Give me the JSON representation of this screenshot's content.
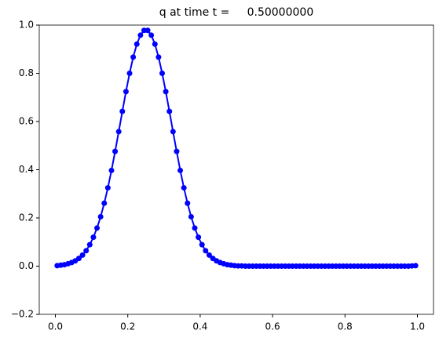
{
  "chart_data": {
    "type": "line",
    "title": "q at time t =     0.50000000",
    "x": [
      0.005,
      0.015,
      0.025,
      0.035,
      0.045,
      0.055,
      0.065,
      0.075,
      0.085,
      0.095,
      0.105,
      0.115,
      0.125,
      0.135,
      0.145,
      0.155,
      0.165,
      0.175,
      0.185,
      0.195,
      0.205,
      0.215,
      0.225,
      0.235,
      0.245,
      0.255,
      0.265,
      0.275,
      0.285,
      0.295,
      0.305,
      0.315,
      0.325,
      0.335,
      0.345,
      0.355,
      0.365,
      0.375,
      0.385,
      0.395,
      0.405,
      0.415,
      0.425,
      0.435,
      0.445,
      0.455,
      0.465,
      0.475,
      0.485,
      0.495,
      0.505,
      0.515,
      0.525,
      0.535,
      0.545,
      0.555,
      0.565,
      0.575,
      0.585,
      0.595,
      0.605,
      0.615,
      0.625,
      0.635,
      0.645,
      0.655,
      0.665,
      0.675,
      0.685,
      0.695,
      0.705,
      0.715,
      0.725,
      0.735,
      0.745,
      0.755,
      0.765,
      0.775,
      0.785,
      0.795,
      0.805,
      0.815,
      0.825,
      0.835,
      0.845,
      0.855,
      0.865,
      0.875,
      0.885,
      0.895,
      0.905,
      0.915,
      0.925,
      0.935,
      0.945,
      0.955,
      0.965,
      0.975,
      0.985,
      0.995
    ],
    "values": [
      0.002,
      0.004,
      0.006,
      0.01,
      0.015,
      0.022,
      0.032,
      0.046,
      0.064,
      0.089,
      0.12,
      0.158,
      0.205,
      0.261,
      0.325,
      0.397,
      0.476,
      0.558,
      0.642,
      0.724,
      0.8,
      0.867,
      0.921,
      0.958,
      0.978,
      0.978,
      0.958,
      0.921,
      0.867,
      0.8,
      0.724,
      0.642,
      0.558,
      0.476,
      0.397,
      0.325,
      0.261,
      0.205,
      0.158,
      0.12,
      0.089,
      0.064,
      0.046,
      0.032,
      0.022,
      0.015,
      0.01,
      0.006,
      0.004,
      0.002,
      0.001,
      0.001,
      0,
      0,
      0,
      0,
      0,
      0,
      0,
      0,
      0,
      0,
      0,
      0,
      0,
      0,
      0,
      0,
      0,
      0,
      0,
      0,
      0,
      0,
      0,
      0,
      0,
      0,
      0,
      0,
      0,
      0,
      0,
      0,
      0,
      0,
      0,
      0,
      0,
      0,
      0,
      0,
      0,
      0,
      0,
      0,
      0,
      0,
      0.001,
      0.002
    ],
    "color": "#0000ff",
    "xlim": [
      -0.0445,
      1.0445
    ],
    "xticks": [
      {
        "value": 0.0,
        "label": "0.0"
      },
      0.2,
      0.4,
      0.6,
      0.8,
      {
        "value": 1.0,
        "label": "1.0"
      }
    ],
    "ylim": [
      -0.2,
      1.0
    ],
    "yticks": [
      {
        "value": -0.2,
        "label": "−0.2"
      },
      {
        "value": 0.0,
        "label": "0.0"
      },
      0.2,
      0.4,
      0.6,
      0.8,
      {
        "value": 1.0,
        "label": "1.0"
      }
    ]
  }
}
